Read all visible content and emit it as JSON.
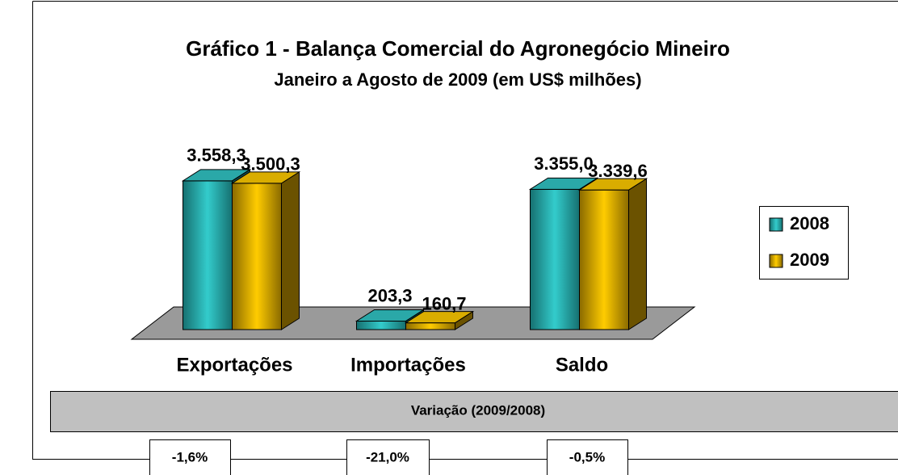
{
  "chart_data": {
    "type": "bar3d",
    "title": "Gráfico 1 - Balança Comercial do Agronegócio Mineiro",
    "subtitle": "Janeiro a Agosto de 2009 (em US$ milhões)",
    "categories": [
      "Exportações",
      "Importações",
      "Saldo"
    ],
    "series": [
      {
        "name": "2008",
        "color": "#33cccc",
        "values": [
          3558.3,
          203.3,
          3355.0
        ],
        "value_labels": [
          "3.558,3",
          "203,3",
          "3.355,0"
        ]
      },
      {
        "name": "2009",
        "color": "#ffcc00",
        "values": [
          3500.3,
          160.7,
          3339.6
        ],
        "value_labels": [
          "3.500,3",
          "160,7",
          "3.339,6"
        ]
      }
    ],
    "ylim": [
      0,
      4000
    ],
    "legend": "right"
  },
  "variation": {
    "title": "Variação (2009/2008)",
    "labels": [
      "-1,6%",
      "-21,0%",
      "-0,5%"
    ]
  }
}
